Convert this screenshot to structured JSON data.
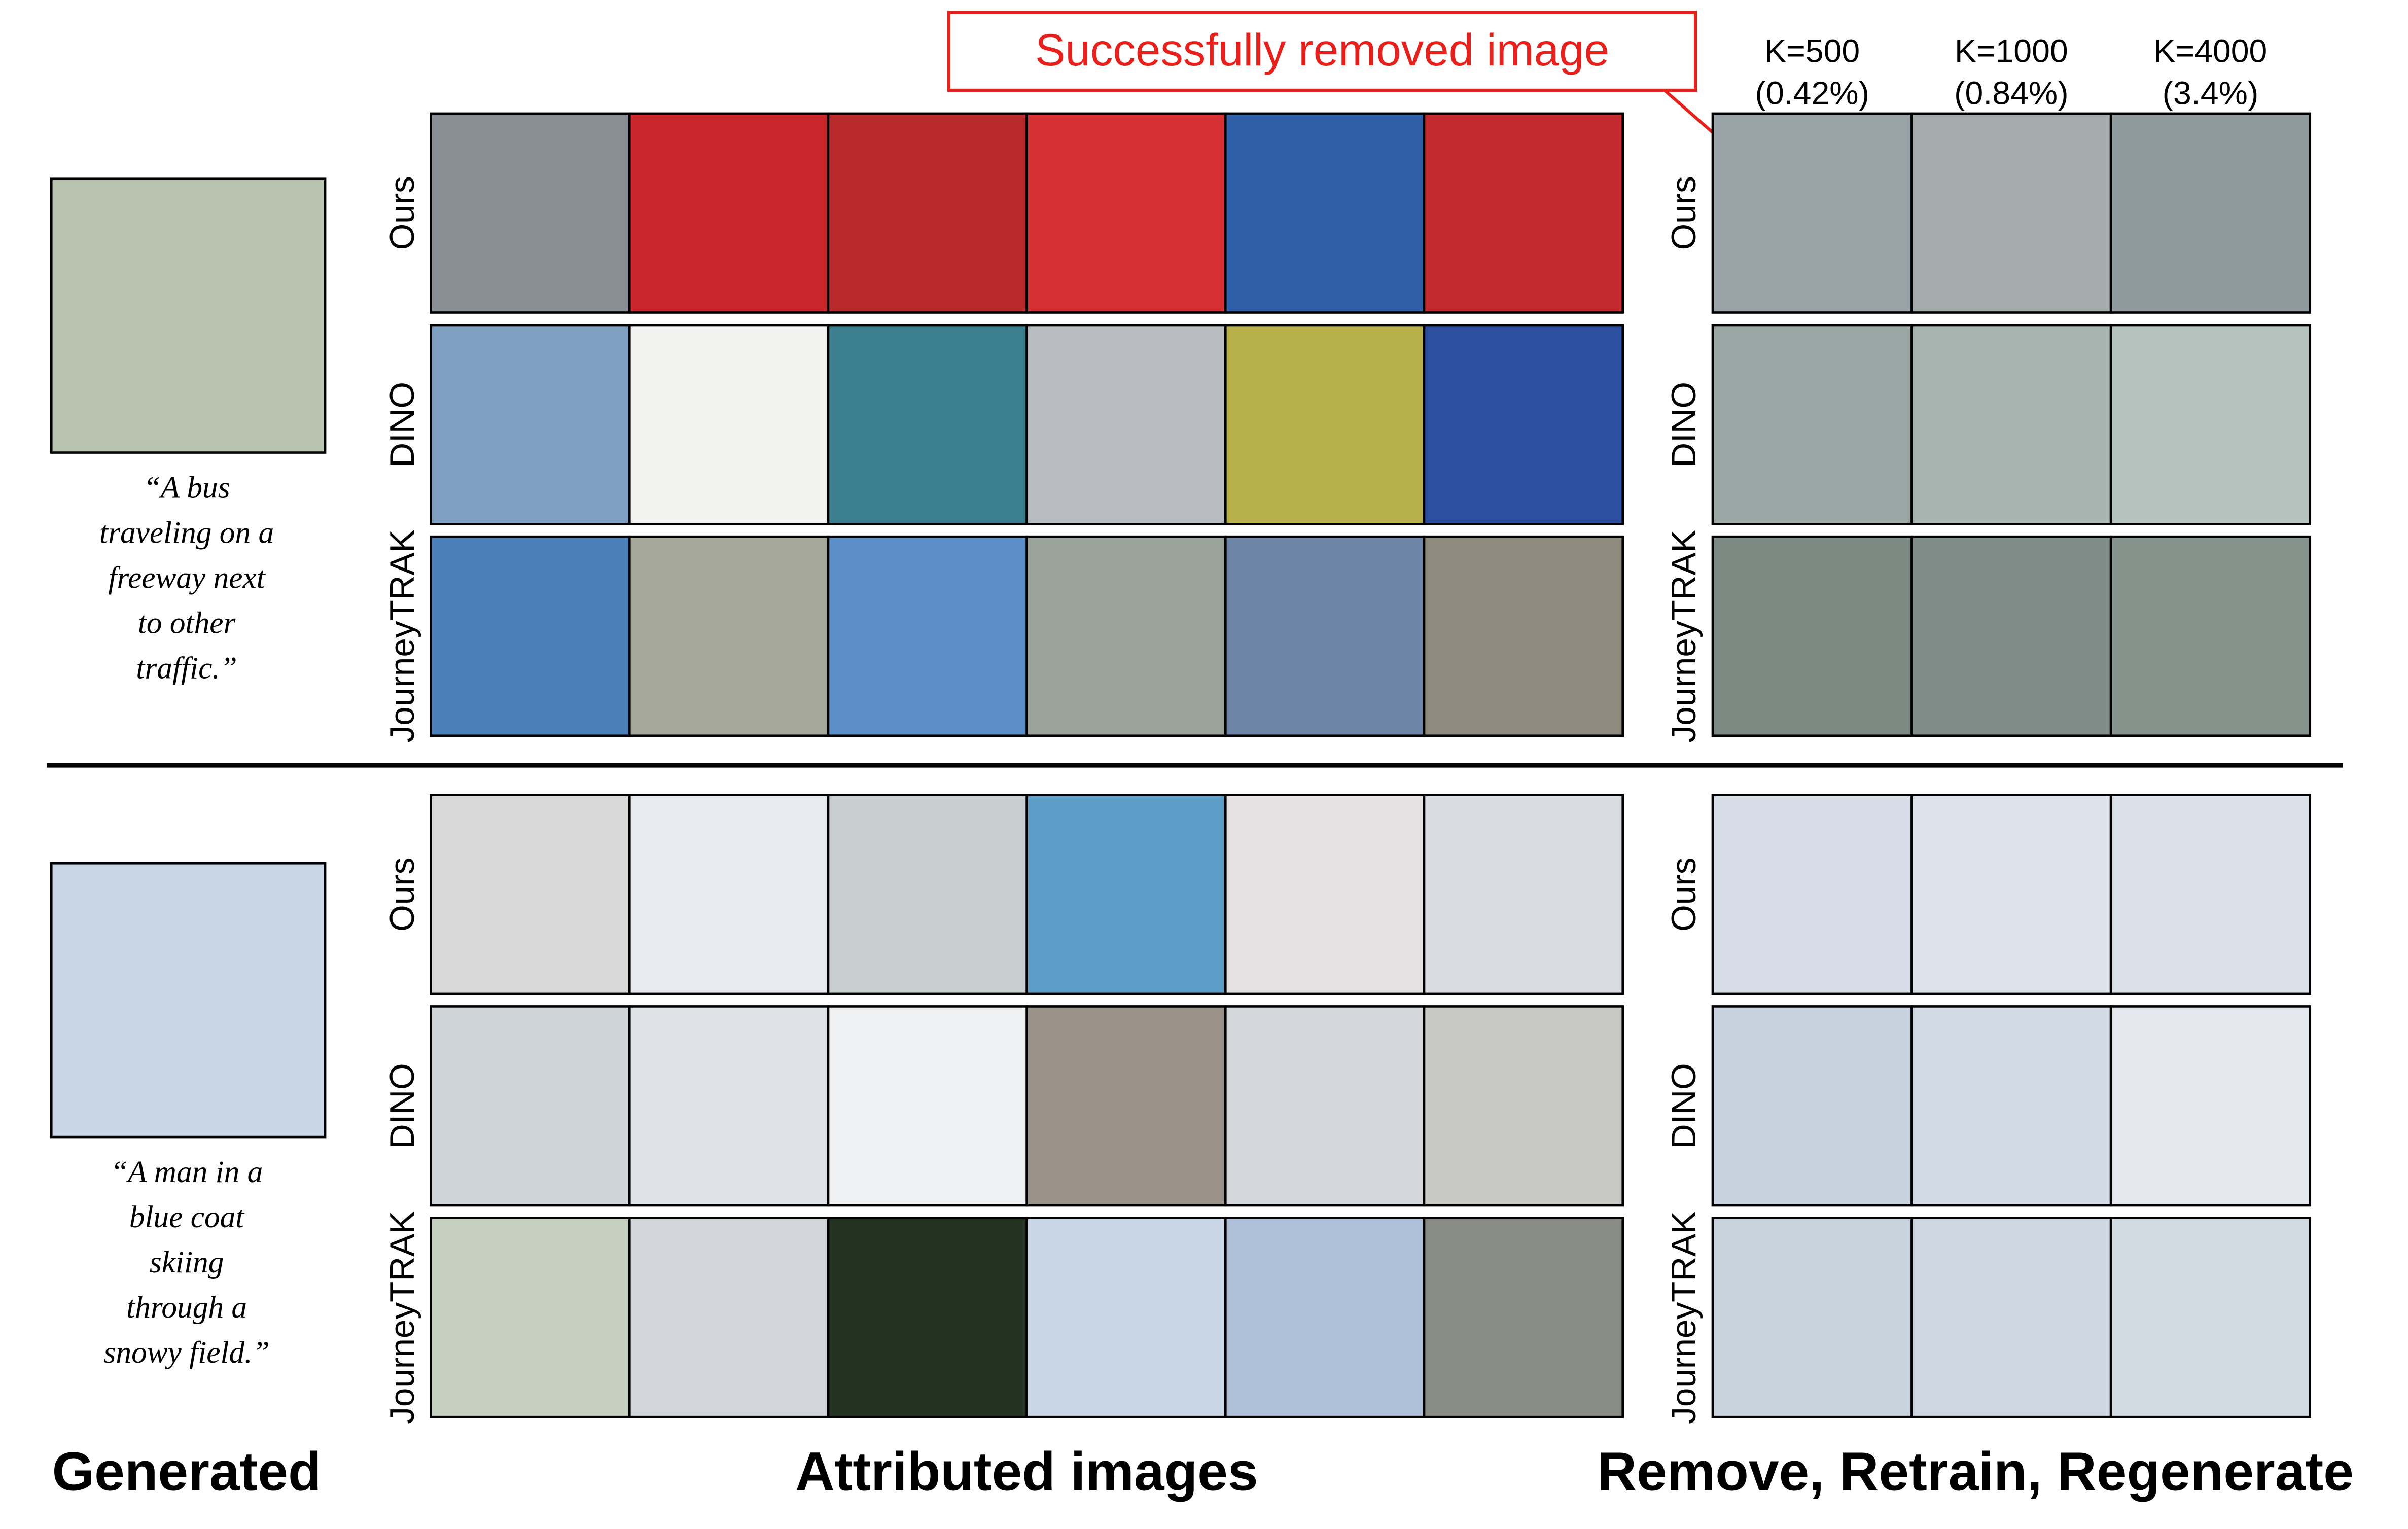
{
  "annotation": "Successfully removed image",
  "k_headers": [
    {
      "k": "K=500",
      "pct": "(0.42%)"
    },
    {
      "k": "K=1000",
      "pct": "(0.84%)"
    },
    {
      "k": "K=4000",
      "pct": "(3.4%)"
    }
  ],
  "methods": [
    "Ours",
    "DINO",
    "JourneyTRAK"
  ],
  "examples": [
    {
      "caption": [
        "“A bus",
        "traveling on a",
        "freeway next",
        "to other",
        "traffic.”"
      ]
    },
    {
      "caption": [
        "“A man in a",
        "blue coat",
        "skiing",
        "through a",
        "snowy field.”"
      ]
    }
  ],
  "section_labels": [
    "Generated",
    "Attributed images",
    "Remove, Retrain, Regenerate"
  ]
}
